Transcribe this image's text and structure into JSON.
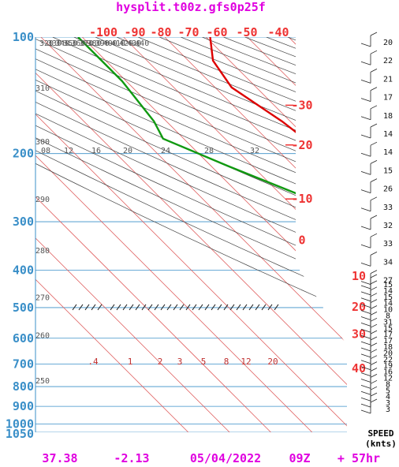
{
  "chart_data": {
    "type": "skew-t",
    "title": "hysplit.t00z.gfs0p25f",
    "pressure_levels": [
      100,
      200,
      300,
      400,
      500,
      600,
      700,
      800,
      900,
      1000,
      1050
    ],
    "temperature_ticks_top": [
      "-100",
      "-90",
      "-80",
      "-70",
      "-60",
      "-50",
      "-40"
    ],
    "temperature_ticks_right": [
      {
        "t": -30,
        "p": 150
      },
      {
        "t": -20,
        "p": 190
      },
      {
        "t": -10,
        "p": 262
      },
      {
        "t": 0,
        "p": 335
      },
      {
        "t": 10,
        "p": 415
      },
      {
        "t": 20,
        "p": 498
      },
      {
        "t": 30,
        "p": 585
      },
      {
        "t": 40,
        "p": 718
      }
    ],
    "theta_top_labels": [
      "320",
      "330",
      "340",
      "350",
      "360",
      "370",
      "380",
      "390",
      "400",
      "410",
      "420",
      "430",
      "440"
    ],
    "theta_left_labels": [
      {
        "label": "310",
        "p": 135
      },
      {
        "label": "300",
        "p": 186
      },
      {
        "label": "290",
        "p": 262
      },
      {
        "label": "280",
        "p": 355
      },
      {
        "label": "270",
        "p": 470
      },
      {
        "label": "260",
        "p": 588
      },
      {
        "label": "250",
        "p": 770
      }
    ],
    "mixing_ratio_labels_top": [
      "08",
      "12",
      "16",
      "20",
      "24",
      "28",
      "32"
    ],
    "mixing_ratio_labels_bottom": [
      ".4",
      "1",
      "2",
      "3",
      "5",
      "8",
      "12",
      "20"
    ],
    "temperature_profile": [
      {
        "p": 100,
        "t": -59
      },
      {
        "p": 115,
        "t": -64
      },
      {
        "p": 135,
        "t": -66
      },
      {
        "p": 165,
        "t": -62
      },
      {
        "p": 195,
        "t": -60
      },
      {
        "p": 230,
        "t": -56
      },
      {
        "p": 262,
        "t": -52
      },
      {
        "p": 290,
        "t": -43
      },
      {
        "p": 330,
        "t": -36
      },
      {
        "p": 380,
        "t": -28
      },
      {
        "p": 450,
        "t": -20
      },
      {
        "p": 520,
        "t": -12
      },
      {
        "p": 600,
        "t": -6
      },
      {
        "p": 700,
        "t": 0
      },
      {
        "p": 800,
        "t": 5
      },
      {
        "p": 880,
        "t": 8.5
      },
      {
        "p": 930,
        "t": 12
      }
    ],
    "dewpoint_profile": [
      {
        "p": 100,
        "t": -91
      },
      {
        "p": 130,
        "t": -91
      },
      {
        "p": 165,
        "t": -93
      },
      {
        "p": 183,
        "t": -95
      },
      {
        "p": 215,
        "t": -86
      },
      {
        "p": 262,
        "t": -74
      },
      {
        "p": 300,
        "t": -60
      },
      {
        "p": 360,
        "t": -49
      },
      {
        "p": 400,
        "t": -44
      },
      {
        "p": 460,
        "t": -40
      },
      {
        "p": 520,
        "t": -31
      },
      {
        "p": 580,
        "t": -22
      },
      {
        "p": 700,
        "t": -8
      },
      {
        "p": 800,
        "t": -1
      },
      {
        "p": 880,
        "t": 3
      },
      {
        "p": 930,
        "t": 3.5
      }
    ],
    "wind_speeds": [
      "20",
      "22",
      "21",
      "17",
      "18",
      "14",
      "14",
      "15",
      "26",
      "33",
      "32",
      "33",
      "34",
      "27",
      "15",
      "14",
      "15",
      "14",
      "10",
      "8",
      "31",
      "15",
      "17",
      "17",
      "18",
      "20",
      "22",
      "19",
      "16",
      "12",
      "8",
      "5",
      "4",
      "3",
      "3"
    ],
    "speed_header": [
      "SPEED",
      "(knts)"
    ],
    "footer": {
      "latitude": "37.38",
      "longitude": "-2.13",
      "date": "05/04/2022",
      "hour": "09Z",
      "forecast": "+ 57hr"
    },
    "colors": {
      "title": "#e000e0",
      "pressure": "#3a8fc8",
      "temperature_ticks": "#ee3333",
      "temperature_line": "#dd0000",
      "dewpoint_line": "#119911",
      "isotherm": "#e06060",
      "dry_adiabat": "#444444",
      "mixing_ratio": "#888888"
    }
  }
}
